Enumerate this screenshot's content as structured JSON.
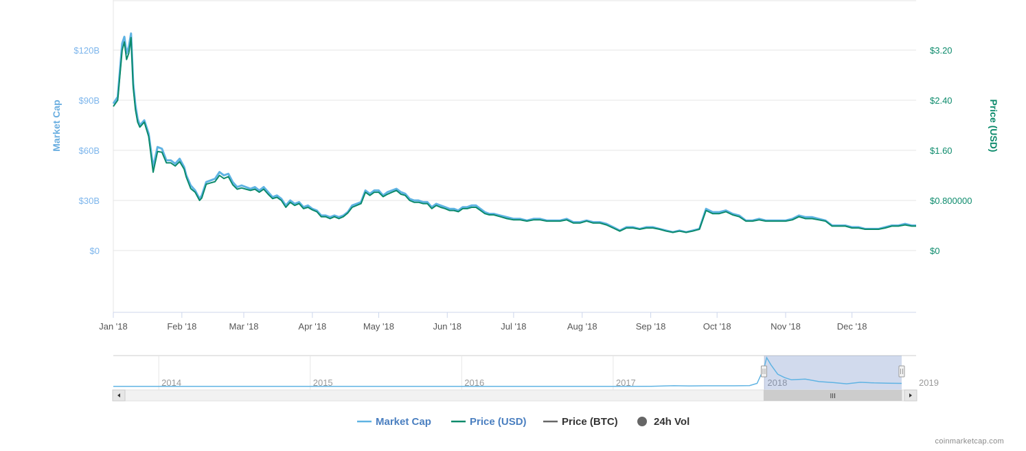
{
  "chart_data": {
    "type": "line",
    "title": "",
    "xlabel": "",
    "ylabel_left": "Market Cap",
    "ylabel_right": "Price (USD)",
    "ylim_left": [
      0,
      120
    ],
    "ylim_right": [
      0,
      3.2
    ],
    "left_ticks": [
      {
        "value": 0,
        "label": "$0"
      },
      {
        "value": 30,
        "label": "$30B"
      },
      {
        "value": 60,
        "label": "$60B"
      },
      {
        "value": 90,
        "label": "$90B"
      },
      {
        "value": 120,
        "label": "$120B"
      }
    ],
    "right_ticks": [
      {
        "value": 0,
        "label": "$0"
      },
      {
        "value": 0.8,
        "label": "$0.800000"
      },
      {
        "value": 1.6,
        "label": "$1.60"
      },
      {
        "value": 2.4,
        "label": "$2.40"
      },
      {
        "value": 3.2,
        "label": "$3.20"
      }
    ],
    "x_ticks": [
      "Jan '18",
      "Feb '18",
      "Mar '18",
      "Apr '18",
      "May '18",
      "Jun '18",
      "Jul '18",
      "Aug '18",
      "Sep '18",
      "Oct '18",
      "Nov '18",
      "Dec '18"
    ],
    "x_range_days": [
      0,
      363
    ],
    "grid": true,
    "series": [
      {
        "name": "Market Cap",
        "axis": "left",
        "color": "#5fb3e3",
        "x": [
          0,
          2,
          4,
          5,
          6,
          7,
          8,
          9,
          10,
          11,
          12,
          14,
          16,
          18,
          20,
          22,
          24,
          26,
          28,
          30,
          32,
          33,
          35,
          37,
          39,
          40,
          42,
          44,
          46,
          48,
          50,
          52,
          54,
          56,
          58,
          60,
          62,
          64,
          66,
          68,
          70,
          72,
          74,
          76,
          78,
          80,
          82,
          84,
          86,
          88,
          90,
          92,
          94,
          96,
          98,
          100,
          102,
          104,
          106,
          108,
          110,
          112,
          114,
          116,
          118,
          120,
          122,
          124,
          126,
          128,
          130,
          132,
          134,
          136,
          138,
          140,
          142,
          144,
          146,
          148,
          150,
          152,
          154,
          156,
          158,
          160,
          162,
          164,
          166,
          168,
          170,
          172,
          175,
          178,
          181,
          184,
          187,
          190,
          193,
          196,
          199,
          202,
          205,
          208,
          211,
          214,
          217,
          220,
          223,
          226,
          229,
          232,
          235,
          238,
          241,
          244,
          247,
          250,
          253,
          256,
          259,
          262,
          265,
          268,
          271,
          274,
          277,
          280,
          283,
          286,
          289,
          292,
          295,
          298,
          301,
          304,
          307,
          310,
          313,
          316,
          319,
          322,
          325,
          328,
          331,
          334,
          337,
          340,
          343,
          346,
          349,
          352,
          355,
          358,
          361,
          363
        ],
        "values": [
          88,
          92,
          124,
          128,
          118,
          122,
          130,
          100,
          87,
          79,
          75,
          78,
          70,
          50,
          62,
          61,
          54,
          54,
          52,
          55,
          50,
          45,
          39,
          36,
          31,
          33,
          41,
          42,
          43,
          47,
          45,
          46,
          41,
          38,
          39,
          38,
          37,
          38,
          36,
          38,
          35,
          32,
          33,
          31,
          27,
          30,
          28,
          29,
          26,
          27,
          25,
          24,
          21,
          21,
          20,
          21,
          20,
          21,
          23,
          27,
          28,
          29,
          36,
          34,
          36,
          36,
          33,
          35,
          36,
          37,
          35,
          34,
          31,
          30,
          30,
          29,
          29,
          26,
          28,
          27,
          26,
          25,
          25,
          24,
          26,
          26,
          27,
          27,
          25,
          23,
          22,
          22,
          21,
          20,
          19,
          19,
          18,
          19,
          19,
          18,
          18,
          18,
          19,
          17,
          17,
          18,
          17,
          17,
          16,
          14,
          12,
          14,
          14,
          13,
          14,
          14,
          13,
          12,
          11,
          12,
          11,
          12,
          13,
          25,
          23,
          23,
          24,
          22,
          21,
          18,
          18,
          19,
          18,
          18,
          18,
          18,
          19,
          21,
          20,
          20,
          19,
          18,
          15,
          15,
          15,
          14,
          14,
          13,
          13,
          13,
          14,
          15,
          15,
          16,
          15,
          15
        ]
      },
      {
        "name": "Price (USD)",
        "axis": "right",
        "color": "#0b8a6b",
        "x": [
          0,
          2,
          4,
          5,
          6,
          7,
          8,
          9,
          10,
          11,
          12,
          14,
          16,
          18,
          20,
          22,
          24,
          26,
          28,
          30,
          32,
          33,
          35,
          37,
          39,
          40,
          42,
          44,
          46,
          48,
          50,
          52,
          54,
          56,
          58,
          60,
          62,
          64,
          66,
          68,
          70,
          72,
          74,
          76,
          78,
          80,
          82,
          84,
          86,
          88,
          90,
          92,
          94,
          96,
          98,
          100,
          102,
          104,
          106,
          108,
          110,
          112,
          114,
          116,
          118,
          120,
          122,
          124,
          126,
          128,
          130,
          132,
          134,
          136,
          138,
          140,
          142,
          144,
          146,
          148,
          150,
          152,
          154,
          156,
          158,
          160,
          162,
          164,
          166,
          168,
          170,
          172,
          175,
          178,
          181,
          184,
          187,
          190,
          193,
          196,
          199,
          202,
          205,
          208,
          211,
          214,
          217,
          220,
          223,
          226,
          229,
          232,
          235,
          238,
          241,
          244,
          247,
          250,
          253,
          256,
          259,
          262,
          265,
          268,
          271,
          274,
          277,
          280,
          283,
          286,
          289,
          292,
          295,
          298,
          301,
          304,
          307,
          310,
          313,
          316,
          319,
          322,
          325,
          328,
          331,
          334,
          337,
          340,
          343,
          346,
          349,
          352,
          355,
          358,
          361,
          363
        ],
        "values": [
          2.3,
          2.4,
          3.2,
          3.33,
          3.05,
          3.15,
          3.4,
          2.6,
          2.25,
          2.05,
          1.97,
          2.05,
          1.82,
          1.25,
          1.58,
          1.57,
          1.4,
          1.4,
          1.35,
          1.42,
          1.3,
          1.17,
          0.99,
          0.93,
          0.8,
          0.84,
          1.06,
          1.08,
          1.1,
          1.2,
          1.15,
          1.18,
          1.05,
          0.98,
          1.0,
          0.98,
          0.96,
          0.98,
          0.93,
          0.98,
          0.9,
          0.83,
          0.85,
          0.8,
          0.69,
          0.77,
          0.72,
          0.75,
          0.67,
          0.69,
          0.65,
          0.62,
          0.54,
          0.54,
          0.51,
          0.54,
          0.51,
          0.54,
          0.6,
          0.69,
          0.72,
          0.75,
          0.93,
          0.88,
          0.93,
          0.93,
          0.86,
          0.9,
          0.93,
          0.96,
          0.9,
          0.88,
          0.8,
          0.77,
          0.77,
          0.75,
          0.75,
          0.67,
          0.72,
          0.69,
          0.67,
          0.64,
          0.64,
          0.62,
          0.67,
          0.67,
          0.69,
          0.69,
          0.64,
          0.59,
          0.57,
          0.57,
          0.54,
          0.51,
          0.49,
          0.49,
          0.47,
          0.49,
          0.49,
          0.47,
          0.47,
          0.47,
          0.49,
          0.44,
          0.44,
          0.47,
          0.44,
          0.44,
          0.41,
          0.36,
          0.31,
          0.36,
          0.36,
          0.34,
          0.36,
          0.36,
          0.34,
          0.31,
          0.29,
          0.31,
          0.29,
          0.31,
          0.34,
          0.64,
          0.59,
          0.59,
          0.62,
          0.57,
          0.54,
          0.47,
          0.47,
          0.49,
          0.47,
          0.47,
          0.47,
          0.47,
          0.49,
          0.54,
          0.51,
          0.51,
          0.49,
          0.47,
          0.39,
          0.39,
          0.39,
          0.36,
          0.36,
          0.34,
          0.34,
          0.34,
          0.36,
          0.39,
          0.39,
          0.41,
          0.39,
          0.39
        ]
      }
    ],
    "navigator": {
      "year_labels": [
        "2014",
        "2015",
        "2016",
        "2017",
        "2018",
        "2019"
      ],
      "scrollbar_grip": "III",
      "series": {
        "x": [
          2013.7,
          2014.0,
          2014.5,
          2015.0,
          2015.5,
          2016.0,
          2016.5,
          2017.0,
          2017.25,
          2017.4,
          2017.5,
          2017.6,
          2017.7,
          2017.8,
          2017.9,
          2017.95,
          2018.0,
          2018.02,
          2018.05,
          2018.1,
          2018.15,
          2018.2,
          2018.3,
          2018.4,
          2018.5,
          2018.6,
          2018.7,
          2018.8,
          2018.9,
          2019.0
        ],
        "values": [
          0.2,
          0.2,
          0.2,
          0.25,
          0.2,
          0.2,
          0.25,
          0.3,
          1.0,
          3.5,
          2.5,
          3.0,
          3.0,
          3.2,
          4.0,
          14,
          82,
          130,
          98,
          55,
          40,
          30,
          33,
          22,
          18,
          12,
          19,
          16,
          15,
          14
        ]
      }
    },
    "legend": {
      "placement": "bottom-center",
      "items": [
        {
          "label": "Market Cap",
          "color": "#5fb3e3",
          "marker": "line"
        },
        {
          "label": "Price (USD)",
          "color": "#0b8a6b",
          "marker": "line"
        },
        {
          "label": "Price (BTC)",
          "color": "#666666",
          "marker": "line"
        },
        {
          "label": "24h Vol",
          "color": "#666666",
          "marker": "circle"
        }
      ]
    },
    "credit": "coinmarketcap.com"
  }
}
